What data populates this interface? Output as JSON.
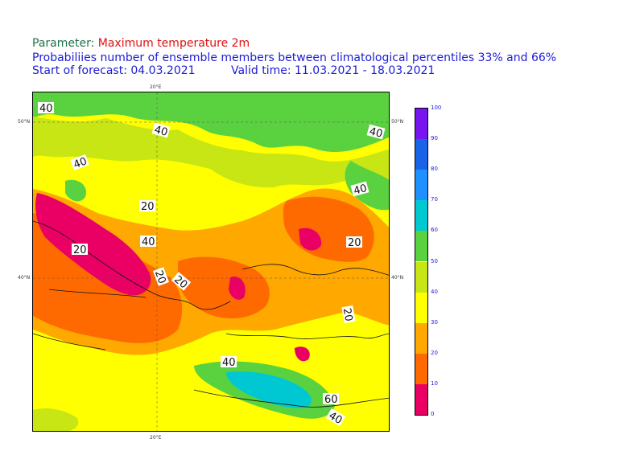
{
  "header": {
    "parameter_label": "Parameter:",
    "parameter_value": "Maximum temperature 2m",
    "description": "Probabiliies number of ensemble members between climatological percentiles 33% and 66%",
    "start_label": "Start of forecast:",
    "start_date": "04.03.2021",
    "valid_label": "Valid time:",
    "valid_range": "11.03.2021 - 18.03.2021"
  },
  "map": {
    "longitude_tick": "20°E",
    "latitude_ticks": [
      "50°N",
      "40°N"
    ],
    "contour_labels": [
      "40",
      "40",
      "40",
      "40",
      "20",
      "40",
      "40",
      "20",
      "20",
      "20",
      "20",
      "20",
      "40",
      "60",
      "40"
    ]
  },
  "colorbar": {
    "levels": [
      "100",
      "90",
      "80",
      "70",
      "60",
      "50",
      "40",
      "30",
      "20",
      "10",
      "0"
    ],
    "colors": [
      "#ea0064",
      "#ff6a00",
      "#ffa800",
      "#ffff00",
      "#c8e614",
      "#5ad240",
      "#00c8d2",
      "#1e90ff",
      "#1964e6",
      "#7814f0"
    ]
  }
}
